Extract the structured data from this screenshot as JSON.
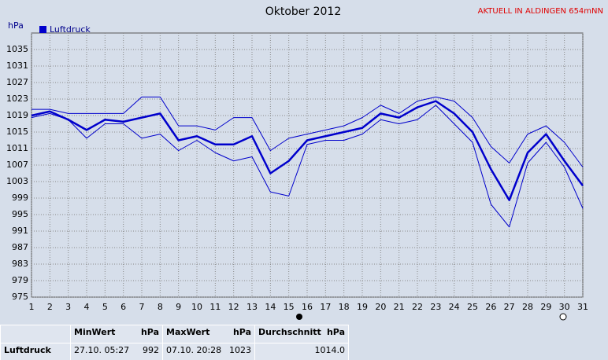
{
  "chart_data": {
    "type": "line",
    "title": "Oktober 2012",
    "subtitle": "AKTUELL IN ALDINGEN 654mNN",
    "y_label": "hPa",
    "x": [
      1,
      2,
      3,
      4,
      5,
      6,
      7,
      8,
      9,
      10,
      11,
      12,
      13,
      14,
      15,
      16,
      17,
      18,
      19,
      20,
      21,
      22,
      23,
      24,
      25,
      26,
      27,
      28,
      29,
      30,
      31
    ],
    "xlim": [
      1,
      31
    ],
    "xticks": [
      1,
      2,
      3,
      4,
      5,
      6,
      7,
      8,
      9,
      10,
      11,
      12,
      13,
      14,
      15,
      16,
      17,
      18,
      19,
      20,
      21,
      22,
      23,
      24,
      25,
      26,
      27,
      28,
      29,
      30,
      31
    ],
    "ylim": [
      975,
      1039
    ],
    "yticks": [
      975,
      979,
      983,
      987,
      991,
      995,
      999,
      1003,
      1007,
      1011,
      1015,
      1019,
      1023,
      1027,
      1031,
      1035
    ],
    "grid": true,
    "legend": "top-left",
    "series": [
      {
        "name": "Luftdruck",
        "color": "#0000cc",
        "values": [
          1019,
          1020,
          1018,
          1015.5,
          1018,
          1017.5,
          1018.5,
          1019.5,
          1013,
          1014,
          1012,
          1012,
          1014,
          1005,
          1008,
          1013,
          1014,
          1015,
          1016,
          1019.5,
          1018.5,
          1021,
          1022.5,
          1019.5,
          1015,
          1006,
          998.5,
          1010,
          1014.5,
          1008,
          1002
        ]
      },
      {
        "color": "#0000cc",
        "values": [
          1020.5,
          1020.5,
          1019.5,
          1019.5,
          1019.5,
          1019.5,
          1023.5,
          1023.5,
          1016.5,
          1016.5,
          1015.5,
          1018.5,
          1018.5,
          1010.5,
          1013.5,
          1014.5,
          1015.5,
          1016.5,
          1018.5,
          1021.5,
          1019.5,
          1022.5,
          1023.5,
          1022.5,
          1018.5,
          1011.5,
          1007.5,
          1014.5,
          1016.5,
          1012.5,
          1006.5
        ]
      },
      {
        "color": "#0000cc",
        "values": [
          1018.5,
          1019.5,
          1018,
          1013.5,
          1017,
          1017,
          1013.5,
          1014.5,
          1010.5,
          1013,
          1010,
          1008,
          1009,
          1000.5,
          999.5,
          1012,
          1013,
          1013,
          1014.5,
          1018,
          1017,
          1018,
          1021.5,
          1017,
          1012.5,
          997.5,
          992,
          1007.5,
          1012.5,
          1006.5,
          996.5
        ]
      }
    ]
  },
  "summary_table": {
    "headers": [
      [
        "MinWert",
        "hPa"
      ],
      [
        "MaxWert",
        "hPa"
      ],
      [
        "Durchschnitt",
        "hPa"
      ]
    ],
    "row": {
      "label": "Luftdruck",
      "min_time": "27.10. 05:27",
      "min": "992",
      "max_time": "07.10. 20:28",
      "max": "1023",
      "mean": "1014.0"
    }
  }
}
